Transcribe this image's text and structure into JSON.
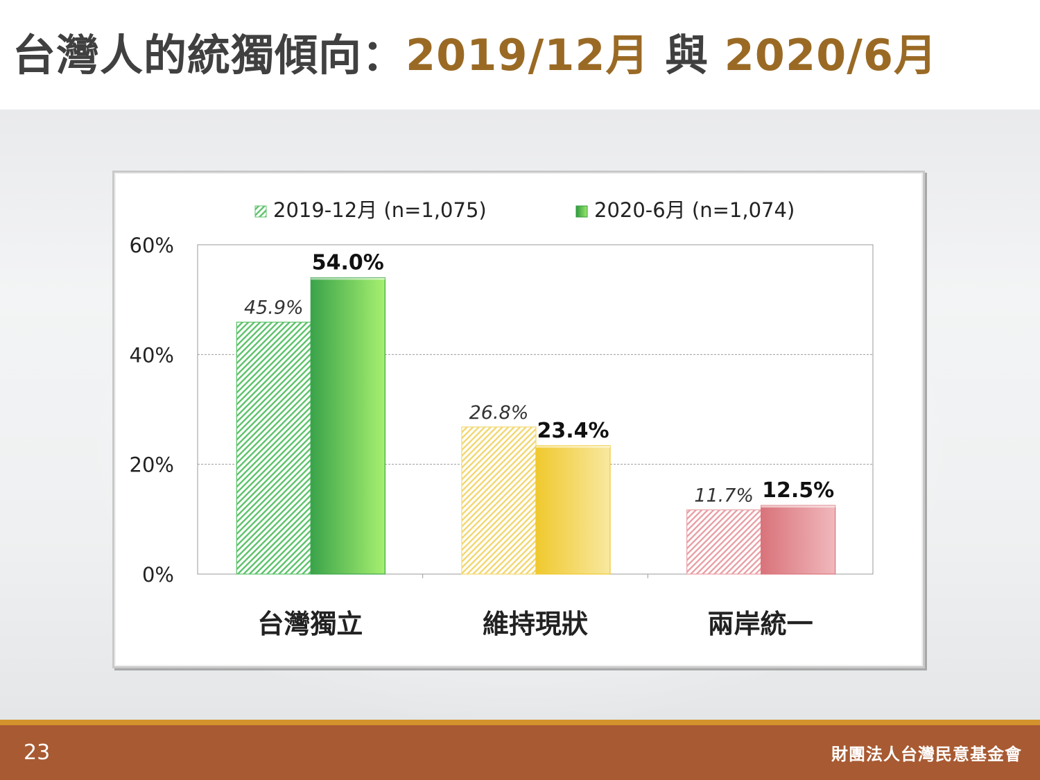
{
  "title": {
    "prefix": "台灣人的統獨傾向：",
    "date1": "2019/12月",
    "joiner": " 與 ",
    "date2": "2020/6月"
  },
  "footer": {
    "page_number": "23",
    "organization": "財團法人台灣民意基金會"
  },
  "chart_data": {
    "type": "bar",
    "categories": [
      "台灣獨立",
      "維持現狀",
      "兩岸統一"
    ],
    "series": [
      {
        "name": "2019-12月 (n=1,075)",
        "values": [
          45.9,
          26.8,
          11.7
        ],
        "labels": [
          "45.9%",
          "26.8%",
          "11.7%"
        ]
      },
      {
        "name": "2020-6月 (n=1,074)",
        "values": [
          54.0,
          23.4,
          12.5
        ],
        "labels": [
          "54.0%",
          "23.4%",
          "12.5%"
        ]
      }
    ],
    "category_colors": [
      [
        "#5cc26a",
        "#3aa34a",
        "#a7f070"
      ],
      [
        "#f2d770",
        "#f0c92e",
        "#f8e8a0"
      ],
      [
        "#e8a0a6",
        "#d9737a",
        "#f0b8bc"
      ]
    ],
    "yticks": [
      "0%",
      "20%",
      "40%",
      "60%"
    ],
    "ylim": [
      0,
      60
    ],
    "grid": true,
    "legend_position": "top-center"
  }
}
